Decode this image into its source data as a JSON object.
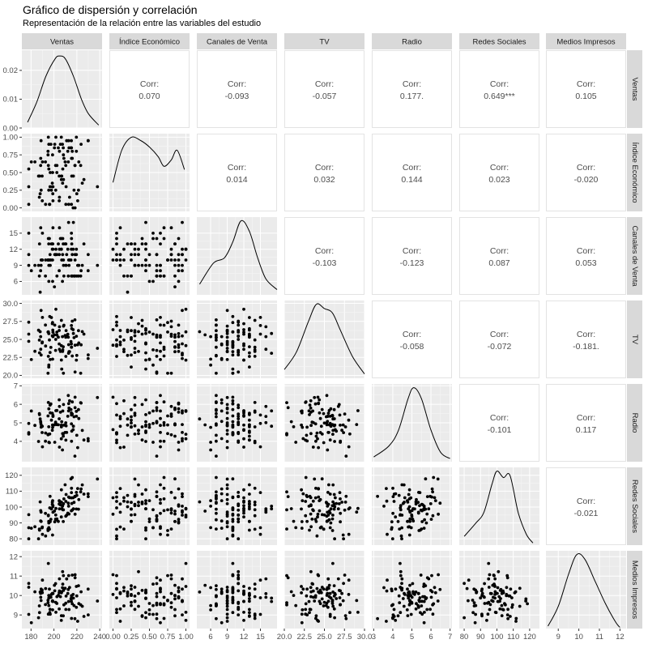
{
  "chart_data": {
    "type": "scatter",
    "title": "Gráfico de dispersión y correlación",
    "subtitle": "Representación de la relación entre las variables del estudio",
    "variables": [
      "Ventas",
      "Índice Económico",
      "Canales de Venta",
      "TV",
      "Radio",
      "Redes Sociales",
      "Medios Impresos"
    ],
    "strip_labels": [
      "Ventas",
      "Índice Económico",
      "Canales de Venta",
      "TV",
      "Radio",
      "Redes Sociales",
      "Medios Impresos"
    ],
    "corr_label": "Corr:",
    "correlations": [
      {
        "row": 0,
        "col": 1,
        "value": "0.070"
      },
      {
        "row": 0,
        "col": 2,
        "value": "-0.093"
      },
      {
        "row": 0,
        "col": 3,
        "value": "-0.057"
      },
      {
        "row": 0,
        "col": 4,
        "value": "0.177."
      },
      {
        "row": 0,
        "col": 5,
        "value": "0.649***"
      },
      {
        "row": 0,
        "col": 6,
        "value": "0.105"
      },
      {
        "row": 1,
        "col": 2,
        "value": "0.014"
      },
      {
        "row": 1,
        "col": 3,
        "value": "0.032"
      },
      {
        "row": 1,
        "col": 4,
        "value": "0.144"
      },
      {
        "row": 1,
        "col": 5,
        "value": "0.023"
      },
      {
        "row": 1,
        "col": 6,
        "value": "-0.020"
      },
      {
        "row": 2,
        "col": 3,
        "value": "-0.103"
      },
      {
        "row": 2,
        "col": 4,
        "value": "-0.123"
      },
      {
        "row": 2,
        "col": 5,
        "value": "0.087"
      },
      {
        "row": 2,
        "col": 6,
        "value": "0.053"
      },
      {
        "row": 3,
        "col": 4,
        "value": "-0.058"
      },
      {
        "row": 3,
        "col": 5,
        "value": "-0.072"
      },
      {
        "row": 3,
        "col": 6,
        "value": "-0.181."
      },
      {
        "row": 4,
        "col": 5,
        "value": "-0.101"
      },
      {
        "row": 4,
        "col": 6,
        "value": "0.117"
      },
      {
        "row": 5,
        "col": 6,
        "value": "-0.021"
      }
    ],
    "x_axes": [
      {
        "range": [
          172,
          242
        ],
        "ticks": [
          180,
          200,
          220,
          240
        ],
        "labels": [
          "180",
          "200",
          "220",
          "240"
        ]
      },
      {
        "range": [
          -0.05,
          1.05
        ],
        "ticks": [
          0,
          0.25,
          0.5,
          0.75,
          1
        ],
        "labels": [
          "0.00",
          "0.25",
          "0.50",
          "0.75",
          "1.00"
        ]
      },
      {
        "range": [
          3.5,
          18
        ],
        "ticks": [
          6,
          9,
          12,
          15
        ],
        "labels": [
          "6",
          "9",
          "12",
          "15"
        ]
      },
      {
        "range": [
          20,
          30
        ],
        "ticks": [
          20,
          22.5,
          25,
          27.5,
          30
        ],
        "labels": [
          "20.0",
          "22.5",
          "25.0",
          "27.5",
          "30.0"
        ]
      },
      {
        "range": [
          2.9,
          7.1
        ],
        "ticks": [
          3,
          4,
          5,
          6,
          7
        ],
        "labels": [
          "3",
          "4",
          "5",
          "6",
          "7"
        ]
      },
      {
        "range": [
          77,
          126
        ],
        "ticks": [
          80,
          90,
          100,
          110,
          120
        ],
        "labels": [
          "80",
          "90",
          "100",
          "110",
          "120"
        ]
      },
      {
        "range": [
          8.4,
          12.3
        ],
        "ticks": [
          9,
          10,
          11,
          12
        ],
        "labels": [
          "9",
          "10",
          "11",
          "12"
        ]
      }
    ],
    "y_axes": [
      {
        "range": [
          0,
          0.027
        ],
        "ticks": [
          0,
          0.01,
          0.02
        ],
        "labels": [
          "0.00",
          "0.01",
          "0.02"
        ]
      },
      {
        "range": [
          -0.05,
          1.05
        ],
        "ticks": [
          0,
          0.25,
          0.5,
          0.75,
          1
        ],
        "labels": [
          "0.00",
          "0.25",
          "0.50",
          "0.75",
          "1.00"
        ]
      },
      {
        "range": [
          3.5,
          18
        ],
        "ticks": [
          6,
          9,
          12,
          15
        ],
        "labels": [
          "6",
          "9",
          "12",
          "15"
        ]
      },
      {
        "range": [
          19.6,
          30.4
        ],
        "ticks": [
          20,
          22.5,
          25,
          27.5,
          30
        ],
        "labels": [
          "20.0",
          "22.5",
          "25.0",
          "27.5",
          "30.0"
        ]
      },
      {
        "range": [
          2.9,
          7.1
        ],
        "ticks": [
          4,
          5,
          6,
          7
        ],
        "labels": [
          "4",
          "5",
          "6",
          "7"
        ]
      },
      {
        "range": [
          76,
          125
        ],
        "ticks": [
          80,
          90,
          100,
          110,
          120
        ],
        "labels": [
          "80",
          "90",
          "100",
          "110",
          "120"
        ]
      },
      {
        "range": [
          8.3,
          12.3
        ],
        "ticks": [
          9,
          10,
          11,
          12
        ],
        "labels": [
          "9",
          "10",
          "11",
          "12"
        ]
      }
    ],
    "densities": [
      {
        "x": [
          177,
          185,
          193,
          201,
          205,
          210,
          217,
          224,
          230,
          239
        ],
        "y": [
          0.002,
          0.009,
          0.018,
          0.024,
          0.025,
          0.024,
          0.018,
          0.01,
          0.005,
          0.001
        ]
      },
      {
        "x": [
          0,
          0.12,
          0.25,
          0.38,
          0.5,
          0.62,
          0.7,
          0.8,
          0.88,
          0.98
        ],
        "y": [
          0.45,
          0.95,
          1.15,
          1.1,
          1.0,
          0.85,
          0.7,
          0.8,
          0.95,
          0.65
        ]
      },
      {
        "x": [
          4,
          6.5,
          8.5,
          10,
          11.5,
          13,
          14.5,
          16,
          18
        ],
        "y": [
          0.02,
          0.06,
          0.07,
          0.1,
          0.14,
          0.12,
          0.07,
          0.03,
          0.01
        ]
      },
      {
        "x": [
          20,
          21.5,
          23,
          24,
          25,
          26,
          27,
          28.5,
          30
        ],
        "y": [
          0.02,
          0.06,
          0.13,
          0.17,
          0.16,
          0.15,
          0.11,
          0.05,
          0.01
        ]
      },
      {
        "x": [
          3,
          3.8,
          4.3,
          4.8,
          5.1,
          5.5,
          6,
          6.5,
          7
        ],
        "y": [
          0.03,
          0.1,
          0.2,
          0.4,
          0.47,
          0.4,
          0.2,
          0.06,
          0.02
        ]
      },
      {
        "x": [
          80,
          87,
          92,
          97,
          100,
          104,
          108,
          113,
          118,
          122
        ],
        "y": [
          0.004,
          0.01,
          0.015,
          0.028,
          0.034,
          0.031,
          0.032,
          0.015,
          0.005,
          0.001
        ]
      },
      {
        "x": [
          8.5,
          9,
          9.5,
          9.9,
          10.3,
          10.8,
          11.3,
          11.8,
          12
        ],
        "y": [
          0.02,
          0.18,
          0.44,
          0.6,
          0.56,
          0.38,
          0.2,
          0.05,
          0.01
        ]
      }
    ]
  }
}
